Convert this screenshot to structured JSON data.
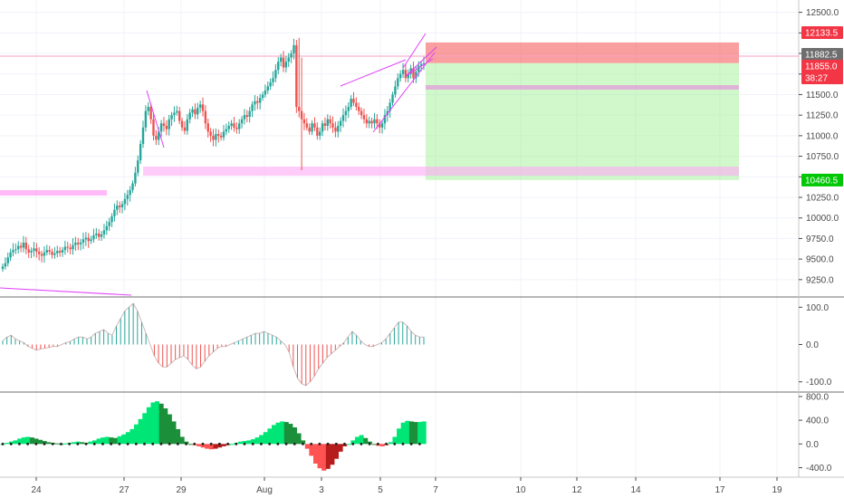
{
  "chart_data": [
    {
      "type": "candlestick",
      "x_ticks": [
        "24",
        "27",
        "29",
        "Aug",
        "3",
        "5",
        "7",
        "10",
        "12",
        "14",
        "17",
        "19"
      ],
      "y_ticks": [
        9250.0,
        9500.0,
        9750.0,
        10000.0,
        10250.0,
        10500.0,
        10750.0,
        11000.0,
        11250.0,
        11500.0,
        11750.0,
        12000.0,
        12250.0,
        12500.0
      ],
      "ylim": [
        9050,
        12650
      ],
      "price_labels": [
        {
          "text": "12133.5",
          "value": 12133.5,
          "color": "#f23645"
        },
        {
          "text": "11882.5",
          "value": 11882.5,
          "color": "#6e6e6e"
        },
        {
          "text": "11855.0",
          "value": 11855.0,
          "color": "#f23645"
        },
        {
          "text": "38:27",
          "value": 11800,
          "color": "#f23645"
        },
        {
          "text": "10460.5",
          "value": 10460.5,
          "color": "#00c805"
        }
      ],
      "position_tool": {
        "entry": 11882.5,
        "stop": 12133.5,
        "target": 10460.5
      },
      "closes": [
        9410,
        9450,
        9520,
        9580,
        9610,
        9620,
        9660,
        9640,
        9700,
        9620,
        9580,
        9600,
        9630,
        9590,
        9560,
        9540,
        9580,
        9610,
        9590,
        9550,
        9570,
        9600,
        9580,
        9610,
        9650,
        9640,
        9620,
        9670,
        9700,
        9680,
        9700,
        9740,
        9760,
        9720,
        9740,
        9790,
        9810,
        9770,
        9800,
        9850,
        9900,
        9950,
        10020,
        10100,
        10150,
        10130,
        10170,
        10230,
        10280,
        10340,
        10420,
        10550,
        10700,
        10900,
        11100,
        11300,
        11350,
        11200,
        11000,
        10950,
        11050,
        11150,
        11120,
        11080,
        11200,
        11250,
        11280,
        11300,
        11180,
        11100,
        11060,
        11200,
        11280,
        11320,
        11260,
        11340,
        11380,
        11300,
        11150,
        11050,
        11000,
        10950,
        11020,
        11000,
        10980,
        11050,
        11080,
        11120,
        11150,
        11100,
        11080,
        11150,
        11200,
        11250,
        11230,
        11300,
        11380,
        11420,
        11400,
        11460,
        11500,
        11550,
        11600,
        11650,
        11700,
        11800,
        11900,
        11950,
        11830,
        11900,
        11950,
        12000,
        12100,
        11350,
        11300,
        11200,
        11150,
        11100,
        11050,
        11150,
        11100,
        11000,
        11050,
        11150,
        11120,
        11200,
        11150,
        11100,
        11050,
        11120,
        11180,
        11250,
        11300,
        11350,
        11450,
        11400,
        11350,
        11300,
        11250,
        11200,
        11150,
        11180,
        11150,
        11200,
        11150,
        11100,
        11150,
        11250,
        11300,
        11400,
        11500,
        11600,
        11700,
        11750,
        11800,
        11700,
        11750,
        11820,
        11700,
        11780,
        11850,
        11870,
        11880
      ],
      "oscillator_1": {
        "y_ticks": [
          100.0,
          0.0,
          -100.0
        ],
        "ylim": [
          -125,
          125
        ],
        "values": [
          10,
          20,
          25,
          15,
          10,
          5,
          -5,
          -10,
          -15,
          -12,
          -10,
          -8,
          -5,
          -5,
          0,
          5,
          8,
          15,
          20,
          20,
          15,
          20,
          30,
          35,
          40,
          30,
          25,
          50,
          70,
          90,
          100,
          110,
          90,
          60,
          30,
          0,
          -30,
          -50,
          -60,
          -60,
          -50,
          -40,
          -35,
          -30,
          -40,
          -55,
          -65,
          -60,
          -45,
          -30,
          -20,
          -10,
          -5,
          -5,
          0,
          5,
          10,
          15,
          20,
          25,
          30,
          30,
          35,
          30,
          25,
          20,
          10,
          0,
          -20,
          -60,
          -90,
          -105,
          -110,
          -100,
          -85,
          -65,
          -50,
          -35,
          -25,
          -15,
          -5,
          5,
          20,
          35,
          25,
          10,
          0,
          -5,
          -5,
          0,
          5,
          15,
          30,
          45,
          60,
          60,
          50,
          35,
          25,
          20,
          20
        ]
      },
      "oscillator_2": {
        "y_ticks": [
          800.0,
          400.0,
          0.0,
          -400.0
        ],
        "ylim": [
          -560,
          860
        ],
        "values": [
          0,
          20,
          40,
          60,
          90,
          110,
          120,
          110,
          90,
          70,
          50,
          30,
          20,
          10,
          0,
          10,
          20,
          30,
          40,
          30,
          20,
          40,
          60,
          90,
          110,
          120,
          110,
          100,
          130,
          160,
          200,
          250,
          330,
          420,
          520,
          620,
          700,
          720,
          680,
          600,
          500,
          380,
          250,
          120,
          40,
          0,
          -20,
          -40,
          -60,
          -80,
          -90,
          -80,
          -60,
          -40,
          -20,
          0,
          20,
          40,
          50,
          60,
          80,
          110,
          150,
          200,
          260,
          320,
          360,
          380,
          370,
          340,
          280,
          180,
          60,
          -80,
          -200,
          -330,
          -410,
          -450,
          -420,
          -350,
          -250,
          -130,
          -40,
          0,
          60,
          120,
          150,
          100,
          40,
          0,
          -30,
          -40,
          -20,
          30,
          120,
          260,
          360,
          390,
          380,
          370,
          370,
          380
        ]
      }
    }
  ]
}
